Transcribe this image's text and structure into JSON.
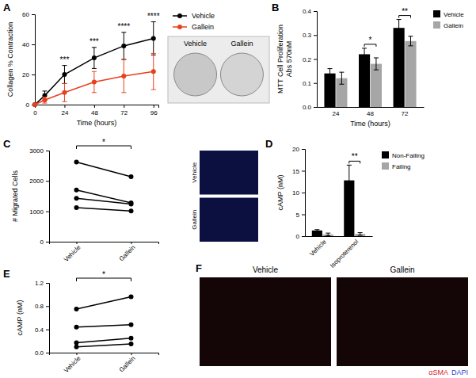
{
  "chart_data": [
    {
      "type": "line",
      "title": "A",
      "xlabel": "Time (hours)",
      "ylabel": "Collagen % Contraction",
      "x": [
        0,
        8,
        24,
        48,
        72,
        96
      ],
      "xlim": [
        0,
        100
      ],
      "xticks": [
        0,
        24,
        48,
        72,
        96
      ],
      "ylim": [
        0,
        60
      ],
      "yticks": [
        0,
        20,
        40,
        60
      ],
      "legend": "right",
      "series": [
        {
          "name": "Vehicle",
          "color": "#000000",
          "marker": "circle",
          "values": [
            0,
            6,
            20,
            31,
            39,
            44
          ],
          "errors": [
            0,
            3,
            6,
            7,
            9,
            11
          ]
        },
        {
          "name": "Gallein",
          "color": "#e8401c",
          "marker": "circle",
          "values": [
            0,
            3,
            8,
            15,
            19,
            22
          ],
          "errors": [
            0,
            2,
            6,
            7,
            11,
            12
          ]
        }
      ],
      "annotations": [
        {
          "x": 24,
          "text": "***"
        },
        {
          "x": 48,
          "text": "***"
        },
        {
          "x": 72,
          "text": "****"
        },
        {
          "x": 96,
          "text": "****"
        }
      ],
      "image_labels": [
        "Vehicle",
        "Gallein"
      ]
    },
    {
      "type": "bar",
      "title": "B",
      "xlabel": "Time (hours)",
      "ylabel": "MTT Cell Proliferation\nAbs 570nM",
      "categories": [
        "24",
        "48",
        "72"
      ],
      "ylim": [
        0,
        0.4
      ],
      "yticks": [
        {
          "value": 0,
          "label": "0.0"
        },
        0.1,
        0.2,
        0.3,
        0.4
      ],
      "legend": "upper right",
      "series": [
        {
          "name": "Vehicle",
          "color": "#000000",
          "values": [
            0.14,
            0.22,
            0.33
          ],
          "errors": [
            0.02,
            0.025,
            0.035
          ]
        },
        {
          "name": "Gallein",
          "color": "#a6a6a6",
          "values": [
            0.12,
            0.18,
            0.275
          ],
          "errors": [
            0.025,
            0.025,
            0.02
          ]
        }
      ],
      "annotations": [
        {
          "at": "48",
          "text": "*"
        },
        {
          "at": "72",
          "text": "**"
        }
      ]
    },
    {
      "type": "line",
      "title": "C",
      "ylabel": "# Migrated Cells",
      "categories": [
        "Vehicle",
        "Gallein"
      ],
      "ylim": [
        0,
        3000
      ],
      "yticks": [
        0,
        1000,
        2000,
        3000
      ],
      "color": "#000000",
      "marker": "circle",
      "series": [
        {
          "values": [
            2620,
            2140
          ]
        },
        {
          "values": [
            1700,
            1280
          ]
        },
        {
          "values": [
            1430,
            1240
          ]
        },
        {
          "values": [
            1120,
            1010
          ]
        }
      ],
      "annotations": [
        {
          "between": [
            "Vehicle",
            "Gallein"
          ],
          "text": "*"
        }
      ],
      "image_labels": [
        "Vehicle",
        "Gallein"
      ]
    },
    {
      "type": "bar",
      "title": "D",
      "ylabel": "cAMP (nM)",
      "categories": [
        "Vehicle",
        "Isoproterenol"
      ],
      "ylim": [
        0,
        20
      ],
      "yticks": [
        0,
        5,
        10,
        15,
        20
      ],
      "legend": "right",
      "series": [
        {
          "name": "Non-Failing",
          "color": "#000000",
          "values": [
            1.3,
            12.8
          ],
          "errors": [
            0.2,
            3.5
          ]
        },
        {
          "name": "Failing",
          "color": "#a6a6a6",
          "values": [
            0.4,
            0.5
          ],
          "errors": [
            0.3,
            0.3
          ]
        }
      ],
      "annotations": [
        {
          "at": "Isoproterenol",
          "text": "**"
        }
      ]
    },
    {
      "type": "line",
      "title": "E",
      "ylabel": "cAMP (nM)",
      "categories": [
        "Vehicle",
        "Gallein"
      ],
      "ylim": [
        0,
        1.2
      ],
      "yticks": [
        {
          "value": 0,
          "label": "0.0"
        },
        0.4,
        0.8,
        1.2
      ],
      "color": "#000000",
      "marker": "circle",
      "series": [
        {
          "values": [
            0.75,
            0.96
          ]
        },
        {
          "values": [
            0.44,
            0.48
          ]
        },
        {
          "values": [
            0.17,
            0.25
          ]
        },
        {
          "values": [
            0.1,
            0.15
          ]
        }
      ],
      "annotations": [
        {
          "between": [
            "Vehicle",
            "Gallein"
          ],
          "text": "*"
        }
      ]
    }
  ],
  "images": [
    {
      "title": "F",
      "labels": [
        "Vehicle",
        "Gallein"
      ],
      "stain_legend": [
        {
          "text": "αSMA",
          "color": "#e0202a"
        },
        {
          "text": "DAPI",
          "color": "#3040d0"
        }
      ]
    }
  ]
}
